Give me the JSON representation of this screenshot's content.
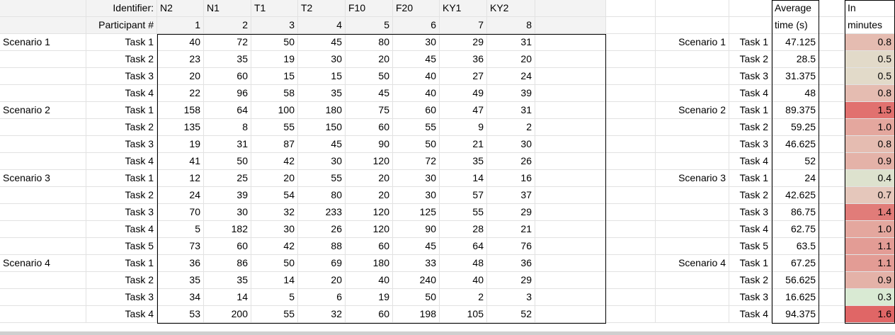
{
  "header": {
    "identifier_label": "Identifier:",
    "participant_label": "Participant #",
    "identifiers": [
      "N2",
      "N1",
      "T1",
      "T2",
      "F10",
      "F20",
      "KY1",
      "KY2"
    ],
    "participant_numbers": [
      "1",
      "2",
      "3",
      "4",
      "5",
      "6",
      "7",
      "8"
    ],
    "average_label_1": "Average",
    "average_label_2": "time (s)",
    "minutes_label_1": "In",
    "minutes_label_2": "minutes"
  },
  "rows": [
    {
      "scenario": "Scenario 1",
      "task": "Task 1",
      "values": [
        "40",
        "72",
        "50",
        "45",
        "80",
        "30",
        "29",
        "31"
      ],
      "average": "47.125",
      "minutes": "0.8",
      "heat": 0.8
    },
    {
      "scenario": "",
      "task": "Task 2",
      "values": [
        "23",
        "35",
        "19",
        "30",
        "20",
        "45",
        "36",
        "20"
      ],
      "average": "28.5",
      "minutes": "0.5",
      "heat": 0.5
    },
    {
      "scenario": "",
      "task": "Task 3",
      "values": [
        "20",
        "60",
        "15",
        "15",
        "50",
        "40",
        "27",
        "24"
      ],
      "average": "31.375",
      "minutes": "0.5",
      "heat": 0.5
    },
    {
      "scenario": "",
      "task": "Task 4",
      "values": [
        "22",
        "96",
        "58",
        "35",
        "45",
        "40",
        "49",
        "39"
      ],
      "average": "48",
      "minutes": "0.8",
      "heat": 0.8
    },
    {
      "scenario": "Scenario 2",
      "task": "Task 1",
      "values": [
        "158",
        "64",
        "100",
        "180",
        "75",
        "60",
        "47",
        "31"
      ],
      "average": "89.375",
      "minutes": "1.5",
      "heat": 1.5
    },
    {
      "scenario": "",
      "task": "Task 2",
      "values": [
        "135",
        "8",
        "55",
        "150",
        "60",
        "55",
        "9",
        "2"
      ],
      "average": "59.25",
      "minutes": "1.0",
      "heat": 1.0
    },
    {
      "scenario": "",
      "task": "Task 3",
      "values": [
        "19",
        "31",
        "87",
        "45",
        "90",
        "50",
        "21",
        "30"
      ],
      "average": "46.625",
      "minutes": "0.8",
      "heat": 0.8
    },
    {
      "scenario": "",
      "task": "Task 4",
      "values": [
        "41",
        "50",
        "42",
        "30",
        "120",
        "72",
        "35",
        "26"
      ],
      "average": "52",
      "minutes": "0.9",
      "heat": 0.9
    },
    {
      "scenario": "Scenario 3",
      "task": "Task 1",
      "values": [
        "12",
        "25",
        "20",
        "55",
        "20",
        "30",
        "14",
        "16"
      ],
      "average": "24",
      "minutes": "0.4",
      "heat": 0.4
    },
    {
      "scenario": "",
      "task": "Task 2",
      "values": [
        "24",
        "39",
        "54",
        "80",
        "20",
        "30",
        "57",
        "37"
      ],
      "average": "42.625",
      "minutes": "0.7",
      "heat": 0.7
    },
    {
      "scenario": "",
      "task": "Task 3",
      "values": [
        "70",
        "30",
        "32",
        "233",
        "120",
        "125",
        "55",
        "29"
      ],
      "average": "86.75",
      "minutes": "1.4",
      "heat": 1.4
    },
    {
      "scenario": "",
      "task": "Task 4",
      "values": [
        "5",
        "182",
        "30",
        "26",
        "120",
        "90",
        "28",
        "21"
      ],
      "average": "62.75",
      "minutes": "1.0",
      "heat": 1.0
    },
    {
      "scenario": "",
      "task": "Task 5",
      "values": [
        "73",
        "60",
        "42",
        "88",
        "60",
        "45",
        "64",
        "76"
      ],
      "average": "63.5",
      "minutes": "1.1",
      "heat": 1.1
    },
    {
      "scenario": "Scenario 4",
      "task": "Task 1",
      "values": [
        "36",
        "86",
        "50",
        "69",
        "180",
        "33",
        "48",
        "36"
      ],
      "average": "67.25",
      "minutes": "1.1",
      "heat": 1.1
    },
    {
      "scenario": "",
      "task": "Task 2",
      "values": [
        "35",
        "35",
        "14",
        "20",
        "40",
        "240",
        "40",
        "29"
      ],
      "average": "56.625",
      "minutes": "0.9",
      "heat": 0.9
    },
    {
      "scenario": "",
      "task": "Task 3",
      "values": [
        "34",
        "14",
        "5",
        "6",
        "19",
        "50",
        "2",
        "3"
      ],
      "average": "16.625",
      "minutes": "0.3",
      "heat": 0.3
    },
    {
      "scenario": "",
      "task": "Task 4",
      "values": [
        "53",
        "200",
        "55",
        "32",
        "60",
        "198",
        "105",
        "52"
      ],
      "average": "94.375",
      "minutes": "1.6",
      "heat": 1.6
    }
  ],
  "colors": {
    "heat_low": "#d9ead3",
    "heat_mid": "#e6d2c4",
    "heat_high": "#e06666",
    "header_bg": "#f3f3f3",
    "gridline": "#e2e2e2"
  }
}
